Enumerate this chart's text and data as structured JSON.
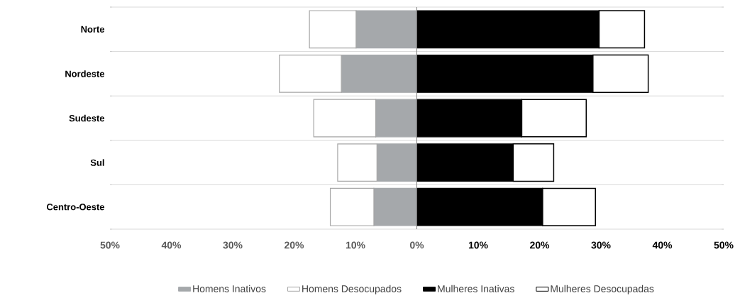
{
  "chart_data": {
    "type": "bar",
    "orientation": "horizontal",
    "stacked": true,
    "categories": [
      "Norte",
      "Nordeste",
      "Sudeste",
      "Sul",
      "Centro-Oeste"
    ],
    "series": [
      {
        "name": "Homens Inativos",
        "color": "#a5a8ab",
        "values": [
          -9.9,
          -12.3,
          -6.7,
          -6.5,
          -7.0
        ]
      },
      {
        "name": "Homens Desocupados",
        "color": "#ffffff",
        "values": [
          -7.6,
          -10.1,
          -10.1,
          -6.4,
          -7.1
        ]
      },
      {
        "name": "Mulheres Inativas",
        "color": "#000000",
        "values": [
          29.7,
          28.7,
          17.1,
          15.7,
          20.5
        ]
      },
      {
        "name": "Mulheres Desocupadas",
        "color": "#ffffff",
        "values": [
          7.4,
          9.0,
          10.5,
          6.6,
          8.6
        ]
      }
    ],
    "xlim": [
      -50,
      50
    ],
    "xticks": [
      {
        "value": -50,
        "label": "50%"
      },
      {
        "value": -40,
        "label": "40%"
      },
      {
        "value": -30,
        "label": "30%"
      },
      {
        "value": -20,
        "label": "20%"
      },
      {
        "value": -10,
        "label": "10%"
      },
      {
        "value": 0,
        "label": "0%"
      },
      {
        "value": 10,
        "label": "10%"
      },
      {
        "value": 20,
        "label": "20%"
      },
      {
        "value": 30,
        "label": "30%"
      },
      {
        "value": 40,
        "label": "40%"
      },
      {
        "value": 50,
        "label": "50%"
      }
    ],
    "grid": "y",
    "legend": "bottom"
  }
}
